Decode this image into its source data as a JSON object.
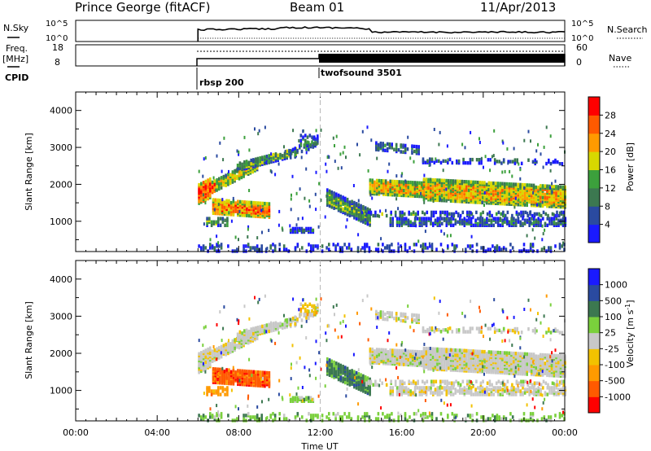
{
  "header": {
    "station": "Prince George (fitACF)",
    "beam": "Beam 01",
    "date": "11/Apr/2013"
  },
  "side_labels": {
    "nsky": "N.Sky",
    "freq": "Freq.",
    "freq_unit": "[MHz]",
    "cpid": "CPID",
    "nsearch": "N.Search",
    "nave": "Nave"
  },
  "top_ticks": {
    "nsky_hi": "10^5",
    "nsky_lo": "10^0",
    "freq_hi": "18",
    "freq_lo": "8",
    "nave_hi": "60",
    "nave_lo": "0"
  },
  "cpid_segments": [
    {
      "label": "rbsp 200",
      "start_hour": 6.0
    },
    {
      "label": "twofsound 3501",
      "start_hour": 12.0
    }
  ],
  "colors": {
    "power_scale": [
      "#1a1aff",
      "#2a4aa0",
      "#3c7850",
      "#3ca03c",
      "#d8d800",
      "#ff9a00",
      "#ff5a00",
      "#ff0000"
    ],
    "velocity_scale": [
      "#ff0000",
      "#ff5a00",
      "#ff9a00",
      "#f2c200",
      "#c8c8c8",
      "#7ad03c",
      "#3c7850",
      "#2a4aa0",
      "#1a1aff"
    ]
  },
  "chart_data": [
    {
      "type": "heatmap",
      "name": "power",
      "xlabel": "",
      "ylabel": "Slant Range [km]",
      "xlim": [
        0,
        24
      ],
      "ylim": [
        180,
        4500
      ],
      "yticks": [
        "1000",
        "2000",
        "3000",
        "4000"
      ],
      "colorbar": {
        "label": "Power [dB]",
        "ticks": [
          "4",
          "8",
          "12",
          "16",
          "20",
          "24",
          "28"
        ],
        "range": [
          0,
          30
        ]
      }
    },
    {
      "type": "heatmap",
      "name": "velocity",
      "xlabel": "Time UT",
      "ylabel": "Slant Range [km]",
      "xlim": [
        0,
        24
      ],
      "ylim": [
        180,
        4500
      ],
      "xticks": [
        "00:00",
        "04:00",
        "08:00",
        "12:00",
        "16:00",
        "20:00",
        "00:00"
      ],
      "yticks": [
        "1000",
        "2000",
        "3000",
        "4000"
      ],
      "colorbar": {
        "label": "Velocity [m s^-1]",
        "ticks": [
          "1000",
          "500",
          "100",
          "25",
          "-25",
          "-100",
          "-500",
          "-1000"
        ]
      }
    }
  ]
}
